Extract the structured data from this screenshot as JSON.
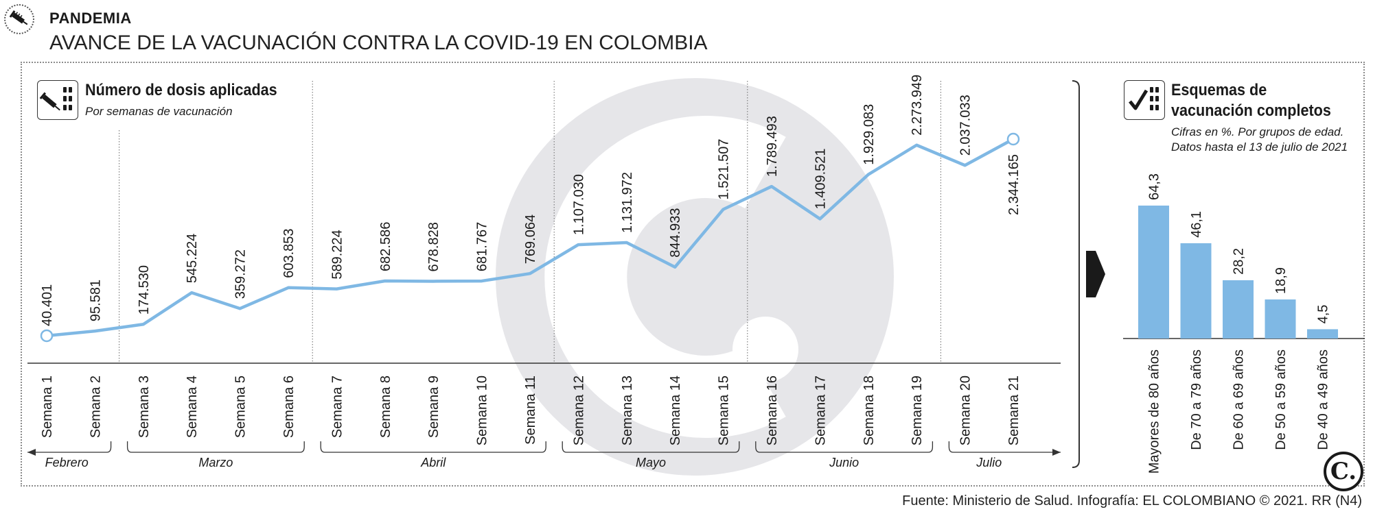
{
  "header": {
    "kicker": "PANDEMIA",
    "title": "AVANCE DE LA VACUNACIÓN CONTRA LA COVID-19 EN COLOMBIA",
    "source": "Fuente: Ministerio de Salud. Infografía: EL COLOMBIANO © 2021. RR (N4)"
  },
  "left_panel": {
    "title": "Número de dosis aplicadas",
    "subtitle": "Por semanas de vacunación",
    "icon": "syringe-vials-icon"
  },
  "right_panel": {
    "title_line1": "Esquemas de",
    "title_line2": "vacunación completos",
    "subtitle_line1": "Cifras en %. Por grupos de edad.",
    "subtitle_line2": "Datos hasta el 13 de julio de 2021",
    "icon": "checkmark-vials-icon"
  },
  "logo": "El Colombiano logo",
  "colors": {
    "line": "#7fb8e4",
    "bar": "#7fb8e4",
    "watermark": "#e6e6e9",
    "text": "#1a1a1a"
  },
  "chart_data": [
    {
      "type": "line",
      "title": "Número de dosis aplicadas",
      "subtitle": "Por semanas de vacunación",
      "x": [
        "Semana 1",
        "Semana 2",
        "Semana 3",
        "Semana 4",
        "Semana 5",
        "Semana 6",
        "Semana 7",
        "Semana 8",
        "Semana 9",
        "Semana 10",
        "Semana 11",
        "Semana 12",
        "Semana 13",
        "Semana 14",
        "Semana 15",
        "Semana 16",
        "Semana 17",
        "Semana 18",
        "Semana 19",
        "Semana 20",
        "Semana 21"
      ],
      "values": [
        40401,
        95581,
        174530,
        545224,
        359272,
        603853,
        589224,
        682586,
        678828,
        681767,
        769064,
        1107030,
        1131972,
        844933,
        1521507,
        1789493,
        1409521,
        1929083,
        2273949,
        2037033,
        2344165
      ],
      "value_labels": [
        "40.401",
        "95.581",
        "174.530",
        "545.224",
        "359.272",
        "603.853",
        "589.224",
        "682.586",
        "678.828",
        "681.767",
        "769.064",
        "1.107.030",
        "1.131.972",
        "844.933",
        "1.521.507",
        "1.789.493",
        "1.409.521",
        "1.929.083",
        "2.273.949",
        "2.037.033",
        "2.344.165"
      ],
      "months": [
        {
          "name": "Febrero",
          "weeks": [
            1,
            2
          ]
        },
        {
          "name": "Marzo",
          "weeks": [
            3,
            6
          ]
        },
        {
          "name": "Abril",
          "weeks": [
            7,
            11
          ]
        },
        {
          "name": "Mayo",
          "weeks": [
            12,
            15
          ]
        },
        {
          "name": "Junio",
          "weeks": [
            16,
            19
          ]
        },
        {
          "name": "Julio",
          "weeks": [
            20,
            21
          ]
        }
      ]
    },
    {
      "type": "bar",
      "title": "Esquemas de vacunación completos",
      "subtitle": "Cifras en %. Por grupos de edad. Datos hasta el 13 de julio de 2021",
      "categories": [
        "Mayores de 80 años",
        "De 70 a 79 años",
        "De 60 a 69 años",
        "De 50 a 59 años",
        "De 40 a 49 años"
      ],
      "values": [
        64.3,
        46.1,
        28.2,
        18.9,
        4.5
      ],
      "value_labels": [
        "64,3",
        "46,1",
        "28,2",
        "18,9",
        "4,5"
      ]
    }
  ]
}
